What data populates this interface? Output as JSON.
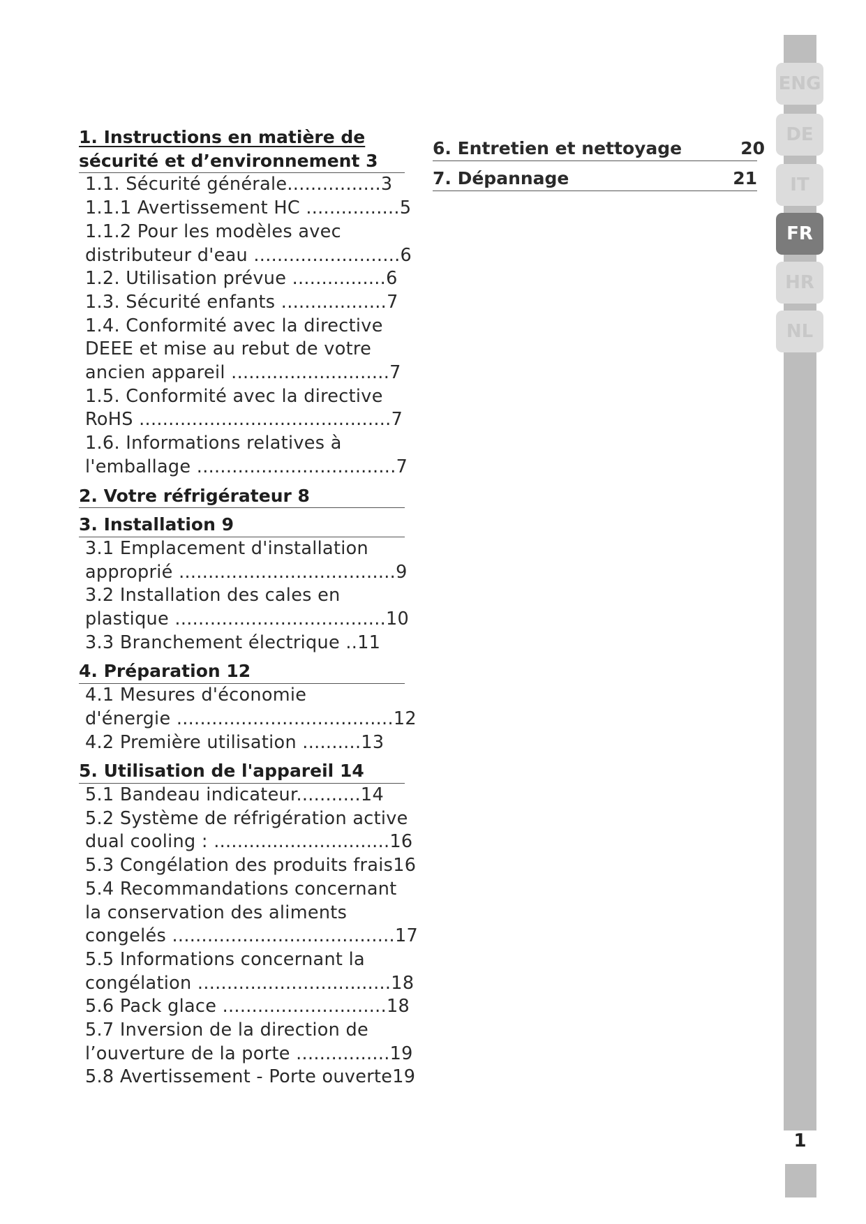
{
  "toc_left": [
    {
      "type": "heading",
      "lines": [
        "1.  Instructions en matière de",
        "sécurité et d’environnement  3"
      ]
    },
    {
      "type": "item",
      "lines": [
        "1.1.  Sécurité générale................3"
      ]
    },
    {
      "type": "item",
      "lines": [
        "1.1.1 Avertissement HC ................5"
      ]
    },
    {
      "type": "item",
      "lines": [
        "1.1.2 Pour les modèles avec",
        "distributeur d'eau .........................6"
      ]
    },
    {
      "type": "item",
      "lines": [
        "1.2.  Utilisation prévue ................6"
      ]
    },
    {
      "type": "item",
      "lines": [
        "1.3.  Sécurité enfants ..................7"
      ]
    },
    {
      "type": "item",
      "lines": [
        "1.4.  Conformité avec la directive",
        "DEEE et mise au rebut de votre",
        "ancien appareil  ...........................7"
      ]
    },
    {
      "type": "item",
      "lines": [
        "1.5.  Conformité avec la directive",
        "RoHS  ...........................................7"
      ]
    },
    {
      "type": "item",
      "lines": [
        "1.6.  Informations relatives à",
        "l'emballage ..................................7"
      ]
    },
    {
      "type": "heading",
      "lines": [
        "2.  Votre réfrigérateur  8"
      ]
    },
    {
      "type": "heading",
      "lines": [
        "3.  Installation  9"
      ]
    },
    {
      "type": "item",
      "lines": [
        "3.1  Emplacement d'installation",
        "approprié .....................................9"
      ]
    },
    {
      "type": "item",
      "lines": [
        "3.2  Installation des cales en",
        "plastique ....................................10"
      ]
    },
    {
      "type": "item",
      "lines": [
        "3.3  Branchement électrique ..11"
      ]
    },
    {
      "type": "heading",
      "lines": [
        "4.  Préparation  12"
      ]
    },
    {
      "type": "item",
      "lines": [
        "4.1  Mesures d'économie",
        "d'énergie .....................................12"
      ]
    },
    {
      "type": "item",
      "lines": [
        "4.2  Première utilisation ..........13"
      ]
    },
    {
      "type": "heading",
      "lines": [
        "5.  Utilisation de l'appareil  14"
      ]
    },
    {
      "type": "item",
      "lines": [
        "5.1  Bandeau indicateur...........14"
      ]
    },
    {
      "type": "item",
      "lines": [
        "5.2  Système de réfrigération active",
        "dual cooling : ..............................16"
      ]
    },
    {
      "type": "item",
      "lines": [
        "5.3 Congélation des produits frais16"
      ]
    },
    {
      "type": "item",
      "lines": [
        "5.4  Recommandations concernant",
        "la conservation des aliments",
        "congelés ......................................17"
      ]
    },
    {
      "type": "item",
      "lines": [
        "5.5 Informations concernant la",
        "congélation .................................18"
      ]
    },
    {
      "type": "item",
      "lines": [
        "5.6 Pack glace  ............................18"
      ]
    },
    {
      "type": "item",
      "lines": [
        "5.7  Inversion de la direction de",
        "l’ouverture de la porte ................19"
      ]
    },
    {
      "type": "item",
      "lines": [
        "5.8  Avertissement - Porte ouverte19"
      ]
    }
  ],
  "toc_right": [
    {
      "title": "6.  Entretien et nettoyage",
      "page": "20"
    },
    {
      "title": "7.  Dépannage",
      "page": "21"
    }
  ],
  "language_tabs": [
    {
      "label": "ENG",
      "active": false
    },
    {
      "label": "DE",
      "active": false
    },
    {
      "label": "IT",
      "active": false
    },
    {
      "label": "FR",
      "active": true
    },
    {
      "label": "HR",
      "active": false
    },
    {
      "label": "NL",
      "active": false
    }
  ],
  "page_number": "1",
  "colors": {
    "bar": "#bdbdbd",
    "tab": "#dcdcdc",
    "tab_active": "#7b7b7b"
  }
}
